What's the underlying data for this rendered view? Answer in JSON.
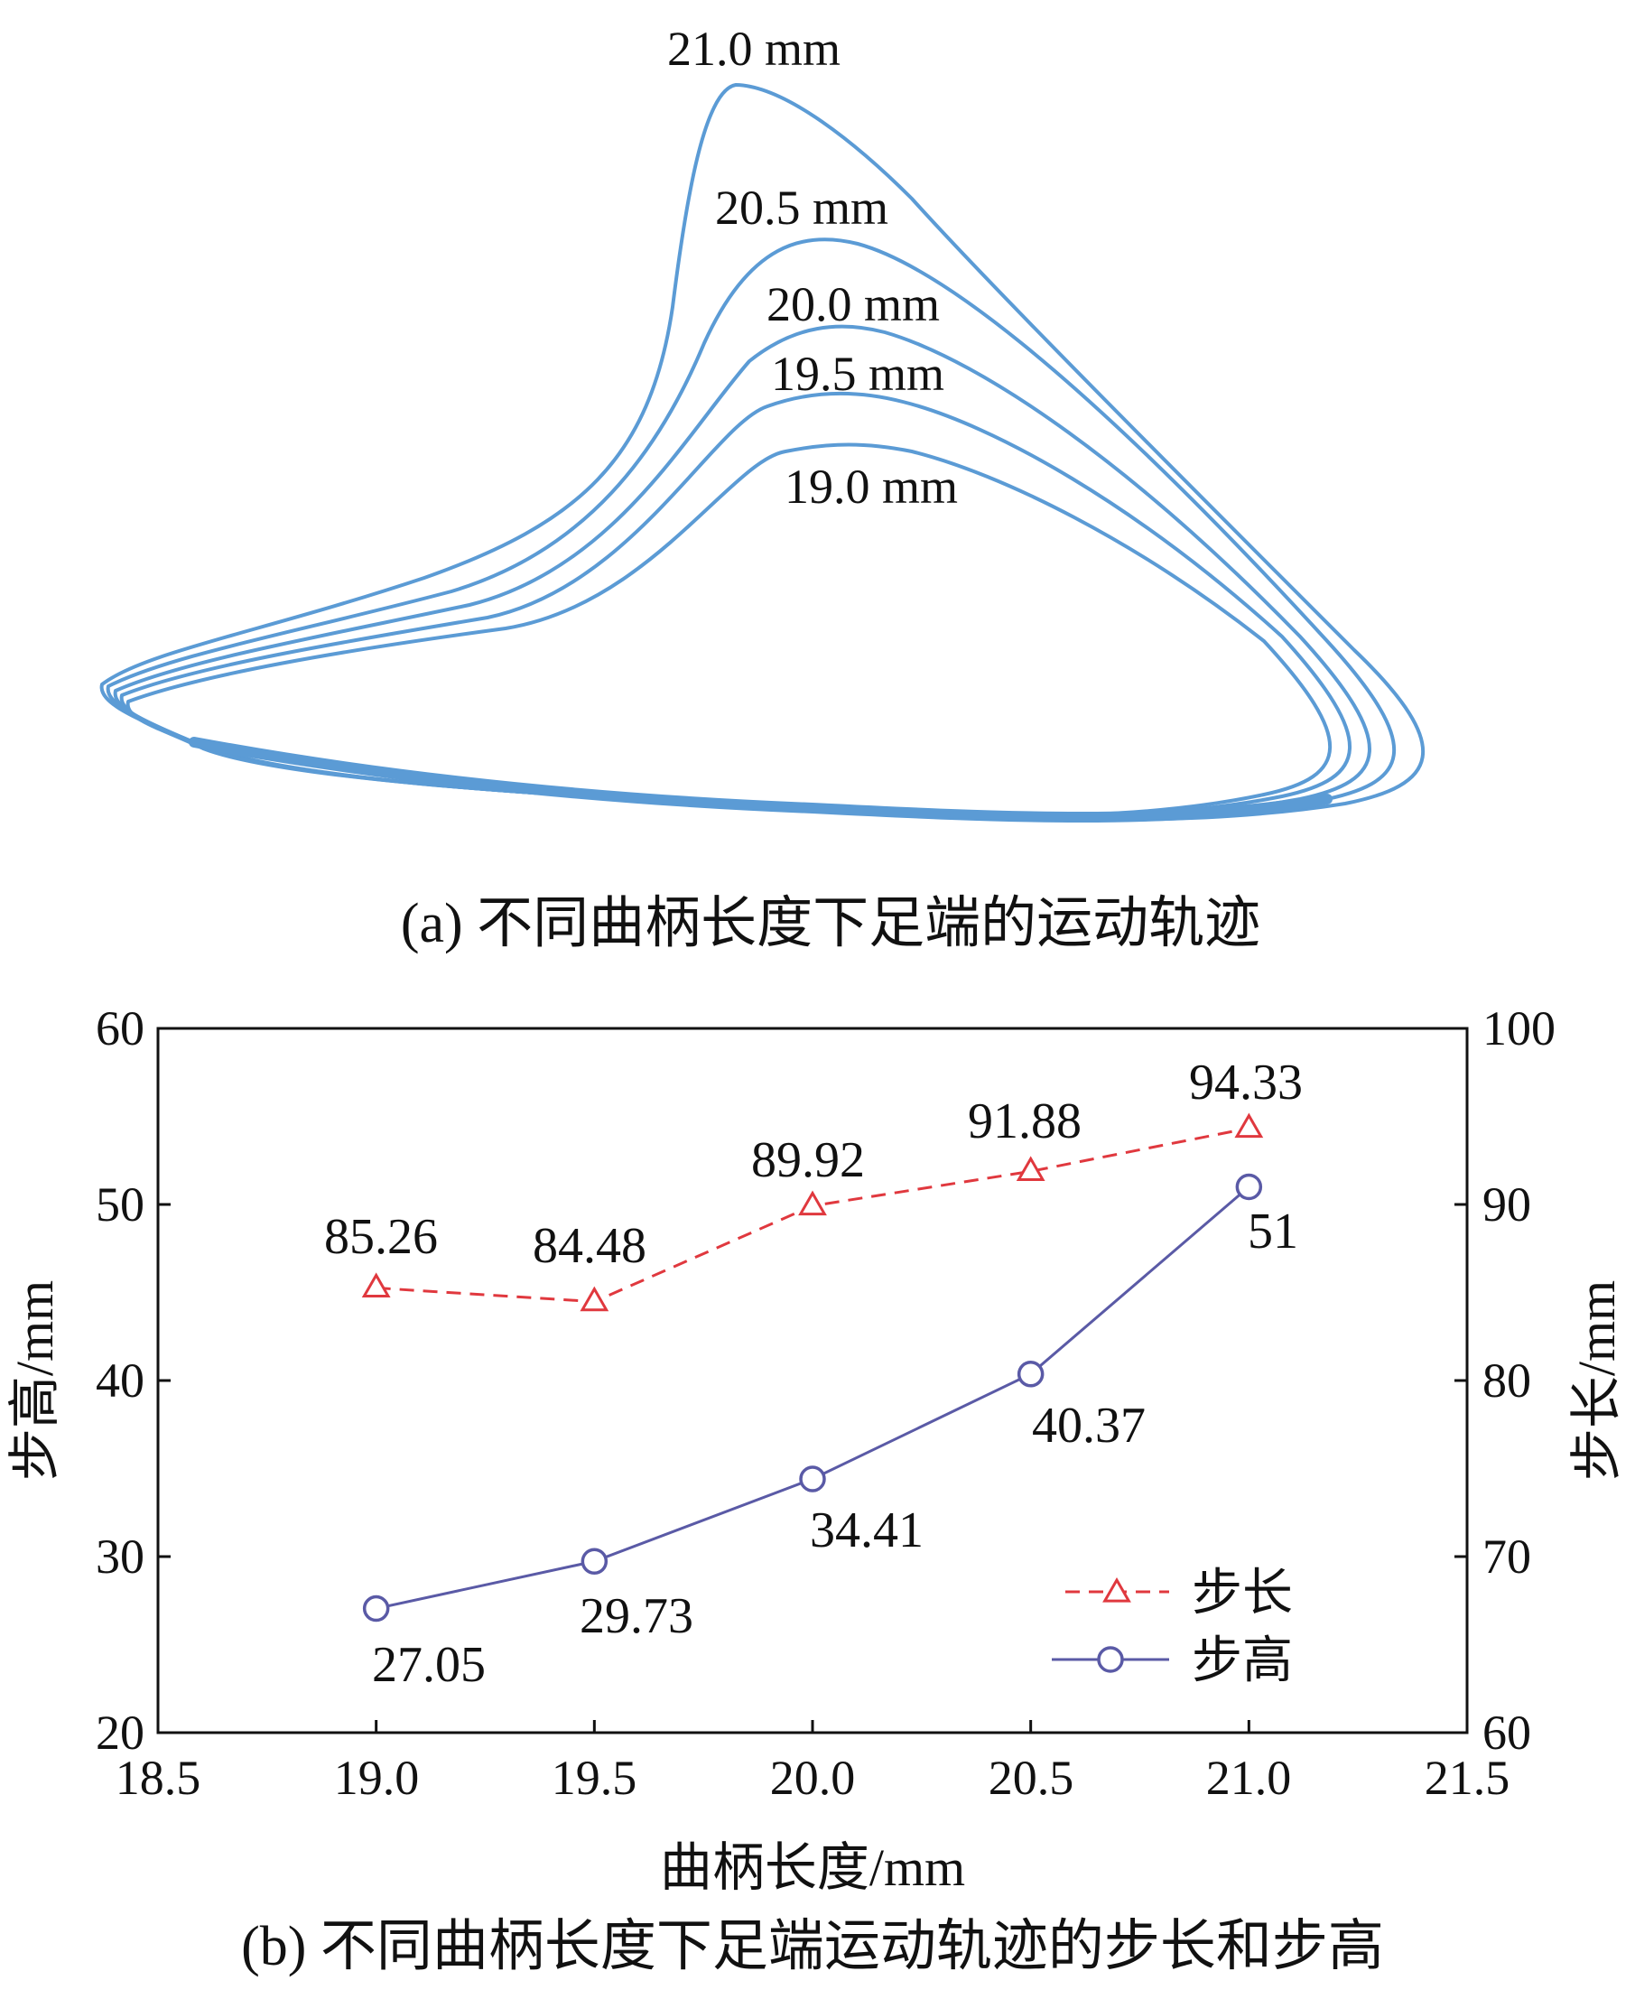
{
  "chart_data": [
    {
      "type": "line",
      "panel_caption": "(a)  不同曲柄长度下足端的运动轨迹",
      "series": [
        {
          "name": "21.0 mm"
        },
        {
          "name": "20.5 mm"
        },
        {
          "name": "20.0 mm"
        },
        {
          "name": "19.5 mm"
        },
        {
          "name": "19.0 mm"
        }
      ],
      "line_color": "#5B9BD5",
      "axes_shown": false
    },
    {
      "type": "line",
      "panel_caption": "(b)  不同曲柄长度下足端运动轨迹的步长和步高",
      "xlabel": "曲柄长度/mm",
      "ylabel_left": "步高/mm",
      "ylabel_right": "步长/mm",
      "xlim": [
        18.5,
        21.5
      ],
      "ylim_left": [
        20,
        60
      ],
      "ylim_right": [
        60,
        100
      ],
      "x_ticks": [
        "18.5",
        "19.0",
        "19.5",
        "20.0",
        "20.5",
        "21.0",
        "21.5"
      ],
      "y_left_ticks": [
        "20",
        "30",
        "40",
        "50",
        "60"
      ],
      "y_right_ticks": [
        "60",
        "70",
        "80",
        "90",
        "100"
      ],
      "x": [
        19.0,
        19.5,
        20.0,
        20.5,
        21.0
      ],
      "series": [
        {
          "name": "步长",
          "axis": "right",
          "values": [
            85.26,
            84.48,
            89.92,
            91.88,
            94.33
          ],
          "labels": [
            "85.26",
            "84.48",
            "89.92",
            "91.88",
            "94.33"
          ],
          "color": "#E0383E",
          "marker": "triangle",
          "dash": true
        },
        {
          "name": "步高",
          "axis": "left",
          "values": [
            27.05,
            29.73,
            34.41,
            40.37,
            51
          ],
          "labels": [
            "27.05",
            "29.73",
            "34.41",
            "40.37",
            "51"
          ],
          "color": "#5A5AA6",
          "marker": "circle",
          "dash": false
        }
      ],
      "legend_position": "bottom-right",
      "grid": false
    }
  ]
}
